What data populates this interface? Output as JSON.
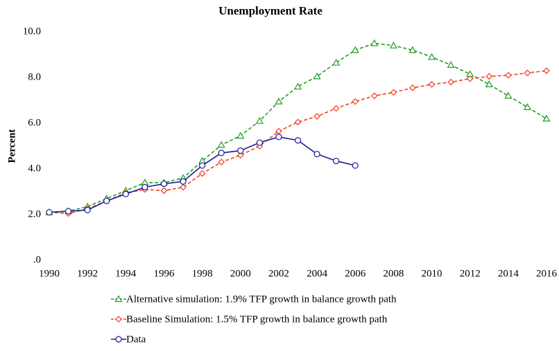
{
  "chart_data": {
    "type": "line",
    "title": "Unemployment Rate",
    "y_label": "Percent",
    "x": [
      1990,
      1991,
      1992,
      1993,
      1994,
      1995,
      1996,
      1997,
      1998,
      1999,
      2000,
      2001,
      2002,
      2003,
      2004,
      2005,
      2006,
      2007,
      2008,
      2009,
      2010,
      2011,
      2012,
      2013,
      2014,
      2015,
      2016
    ],
    "xlim": [
      1990,
      2016
    ],
    "xticks": [
      1990,
      1992,
      1994,
      1996,
      1998,
      2000,
      2002,
      2004,
      2006,
      2008,
      2010,
      2012,
      2014,
      2016
    ],
    "ylim": [
      0,
      10
    ],
    "yticks": [
      {
        "value": 0,
        "label": ".0"
      },
      {
        "value": 2,
        "label": "2.0"
      },
      {
        "value": 4,
        "label": "4.0"
      },
      {
        "value": 6,
        "label": "6.0"
      },
      {
        "value": 8,
        "label": "8.0"
      },
      {
        "value": 10,
        "label": "10.0"
      }
    ],
    "grid": false,
    "legend": "bottom",
    "series": [
      {
        "name": "Alternative simulation: 1.9% TFP growth in balance growth path",
        "color": "#1f9e1f",
        "linestyle": "dashed",
        "marker": "triangle",
        "values": [
          2.1,
          2.15,
          2.35,
          2.7,
          3.05,
          3.4,
          3.4,
          3.6,
          4.35,
          5.05,
          5.45,
          6.1,
          6.95,
          7.6,
          8.05,
          8.65,
          9.2,
          9.5,
          9.4,
          9.2,
          8.9,
          8.55,
          8.15,
          7.7,
          7.2,
          6.7,
          6.2
        ]
      },
      {
        "name": "Baseline Simulation: 1.5% TFP growth in balance growth path",
        "color": "#f03c1e",
        "linestyle": "dashed",
        "marker": "diamond",
        "values": [
          2.1,
          2.05,
          2.25,
          2.6,
          2.95,
          3.1,
          3.05,
          3.2,
          3.8,
          4.3,
          4.6,
          5.0,
          5.65,
          6.05,
          6.3,
          6.65,
          6.95,
          7.2,
          7.35,
          7.55,
          7.7,
          7.8,
          7.95,
          8.05,
          8.1,
          8.2,
          8.3
        ]
      },
      {
        "name": "Data",
        "color": "#1a1a99",
        "linestyle": "solid",
        "marker": "circle",
        "values": [
          2.1,
          2.15,
          2.2,
          2.6,
          2.9,
          3.2,
          3.35,
          3.45,
          4.15,
          4.7,
          4.8,
          5.15,
          5.4,
          5.25,
          4.65,
          4.35,
          4.15,
          null,
          null,
          null,
          null,
          null,
          null,
          null,
          null,
          null,
          null
        ]
      }
    ]
  }
}
